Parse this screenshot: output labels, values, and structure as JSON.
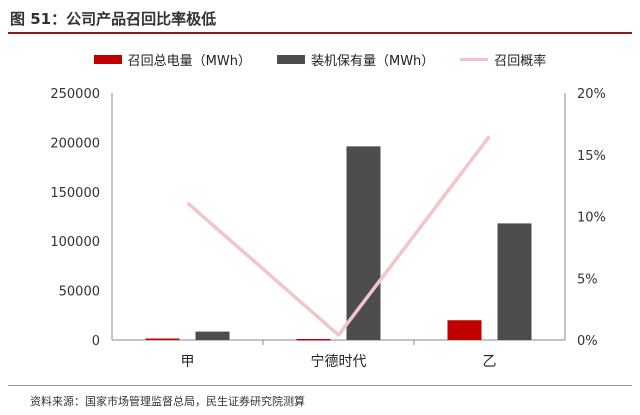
{
  "title": "图 51：公司产品召回比率极低",
  "source": "资料来源：国家市场管理监督总局，民生证券研究院测算",
  "chart_data": {
    "type": "bar",
    "categories": [
      "甲",
      "宁德时代",
      "乙"
    ],
    "series": [
      {
        "name": "召回总电量（MWh）",
        "kind": "bar",
        "axis": "left",
        "color": "#c00000",
        "values": [
          1500,
          1000,
          20000
        ]
      },
      {
        "name": "装机保有量（MWh）",
        "kind": "bar",
        "axis": "left",
        "color": "#4d4d4d",
        "values": [
          8500,
          196000,
          118000
        ]
      },
      {
        "name": "召回概率",
        "kind": "line",
        "axis": "right",
        "color": "#f2c5c8",
        "values": [
          0.111,
          0.004,
          0.165
        ]
      }
    ],
    "ylim": [
      0,
      250000
    ],
    "y_ticks": [
      "0",
      "50000",
      "100000",
      "150000",
      "200000",
      "250000"
    ],
    "y2lim": [
      0,
      0.2
    ],
    "y2_ticks": [
      "0%",
      "5%",
      "10%",
      "15%",
      "20%"
    ],
    "legend_position": "top",
    "grid": false
  }
}
